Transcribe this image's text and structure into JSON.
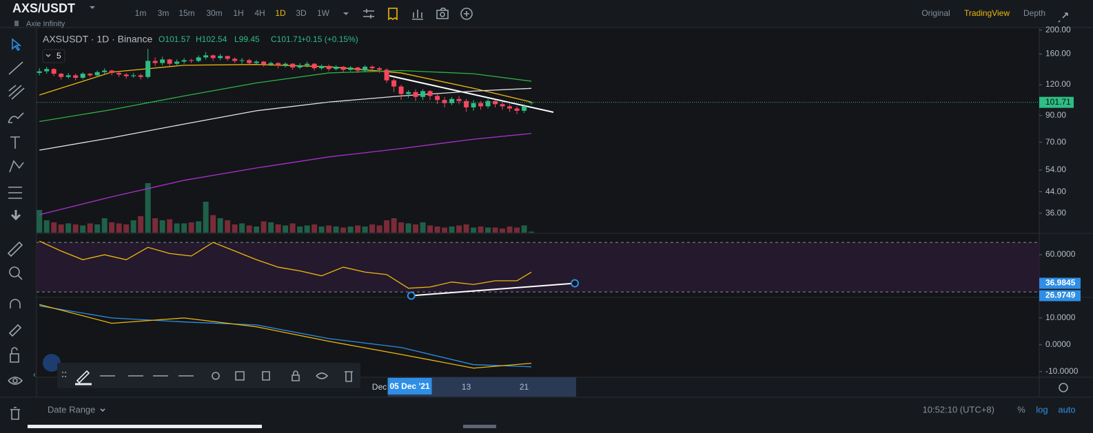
{
  "header": {
    "symbol": "AXS/USDT",
    "name": "Axie Infinity",
    "intervals": [
      {
        "label": "1m"
      },
      {
        "label": "3m"
      },
      {
        "label": "15m"
      },
      {
        "label": "30m"
      },
      {
        "label": "1H"
      },
      {
        "label": "4H"
      },
      {
        "label": "1D",
        "active": true
      },
      {
        "label": "3D"
      },
      {
        "label": "1W"
      }
    ],
    "views": [
      {
        "label": "Original"
      },
      {
        "label": "TradingView",
        "active": true
      },
      {
        "label": "Depth"
      }
    ]
  },
  "footer": {
    "date_range": "Date Range",
    "clock": "10:52:10 (UTC+8)",
    "options": [
      "%",
      "log",
      "auto"
    ]
  },
  "chart_data": [
    {
      "type": "candlestick",
      "title": "AXSUSDT · 1D · Binance",
      "legend": [
        "O101.57",
        "H102.54",
        "L99.45",
        "C101.71",
        "+0.15 (+0.15%)"
      ],
      "indicator_count": "5",
      "open": [
        134,
        136,
        139,
        133,
        129,
        131,
        128,
        133,
        131,
        135,
        137,
        134,
        132,
        130,
        131,
        129,
        150,
        147,
        152,
        146,
        149,
        151,
        150,
        155,
        158,
        154,
        157,
        153,
        150,
        151,
        147,
        149,
        145,
        147,
        144,
        146,
        141,
        144,
        146,
        140,
        143,
        139,
        142,
        138,
        141,
        137,
        142,
        140,
        138,
        125,
        118,
        110,
        112,
        107,
        113,
        108,
        104,
        101,
        105,
        103,
        97,
        101,
        98,
        103,
        100,
        98,
        96,
        94,
        101.57
      ],
      "high": [
        140,
        142,
        140,
        134,
        134,
        133,
        135,
        134,
        137,
        140,
        138,
        136,
        134,
        134,
        133,
        168,
        155,
        156,
        153,
        152,
        154,
        153,
        158,
        163,
        159,
        160,
        157,
        155,
        154,
        153,
        151,
        150,
        149,
        148,
        148,
        147,
        147,
        149,
        147,
        145,
        145,
        144,
        143,
        143,
        142,
        144,
        144,
        142,
        140,
        127,
        120,
        114,
        115,
        115,
        114,
        110,
        107,
        107,
        108,
        105,
        104,
        103,
        105,
        104,
        102,
        100,
        98,
        100,
        102.54
      ],
      "low": [
        131,
        133,
        130,
        126,
        127,
        125,
        126,
        129,
        129,
        133,
        131,
        129,
        127,
        128,
        126,
        127,
        143,
        144,
        143,
        144,
        146,
        147,
        148,
        152,
        150,
        151,
        150,
        147,
        146,
        144,
        145,
        142,
        143,
        140,
        141,
        138,
        139,
        141,
        137,
        138,
        136,
        137,
        135,
        136,
        134,
        135,
        136,
        134,
        122,
        112,
        104,
        106,
        103,
        104,
        104,
        100,
        97,
        99,
        100,
        93,
        94,
        95,
        96,
        97,
        95,
        93,
        91,
        92,
        99.45
      ],
      "close": [
        136,
        139,
        133,
        129,
        131,
        128,
        133,
        131,
        135,
        137,
        134,
        132,
        130,
        131,
        129,
        150,
        147,
        152,
        146,
        149,
        151,
        150,
        155,
        158,
        154,
        157,
        153,
        150,
        151,
        147,
        149,
        145,
        147,
        144,
        146,
        141,
        144,
        146,
        140,
        143,
        139,
        142,
        138,
        141,
        137,
        142,
        140,
        138,
        125,
        118,
        110,
        112,
        107,
        113,
        108,
        104,
        101,
        105,
        103,
        97,
        101,
        98,
        103,
        100,
        98,
        96,
        94,
        98,
        101.71
      ],
      "volume": [
        22,
        12,
        10,
        8,
        9,
        8,
        7,
        9,
        8,
        14,
        10,
        9,
        8,
        12,
        16,
        48,
        14,
        12,
        13,
        9,
        9,
        10,
        11,
        30,
        17,
        14,
        12,
        8,
        9,
        7,
        6,
        11,
        10,
        8,
        7,
        9,
        6,
        7,
        8,
        6,
        7,
        6,
        5,
        6,
        7,
        6,
        8,
        7,
        12,
        14,
        10,
        9,
        8,
        10,
        7,
        6,
        5,
        6,
        7,
        8,
        5,
        6,
        5,
        5,
        4,
        6,
        5,
        7,
        1
      ],
      "up_color": "#2ebd85",
      "down_color": "#f6465d",
      "series": [
        {
          "color": "#f0b90b",
          "x": [
            1,
            11,
            21,
            31,
            41,
            51,
            61,
            69
          ],
          "values": [
            109,
            135,
            144,
            145,
            142,
            134,
            116,
            102
          ]
        },
        {
          "color": "#2fb344",
          "x": [
            1,
            11,
            21,
            31,
            41,
            51,
            61,
            69
          ],
          "values": [
            85,
            95,
            108,
            122,
            134,
            137,
            133,
            124
          ]
        },
        {
          "color": "#e6e6e6",
          "x": [
            1,
            11,
            21,
            31,
            41,
            51,
            61,
            69
          ],
          "values": [
            65,
            73,
            83,
            94,
            102,
            108,
            113,
            116
          ]
        },
        {
          "color": "#b02fd0",
          "x": [
            1,
            11,
            21,
            31,
            41,
            51,
            61,
            69
          ],
          "values": [
            35.5,
            42,
            49,
            55,
            61,
            66,
            72,
            76
          ]
        }
      ],
      "log": true,
      "ylim": [
        30,
        205
      ],
      "yticks": [
        {
          "value": 200,
          "label": "200.00"
        },
        {
          "value": 160,
          "label": "160.00"
        },
        {
          "value": 120,
          "label": "120.00"
        },
        {
          "value": 90,
          "label": "90.00"
        },
        {
          "value": 70,
          "label": "70.00"
        },
        {
          "value": 54,
          "label": "54.00"
        },
        {
          "value": 44,
          "label": "44.00"
        },
        {
          "value": 36,
          "label": "36.00"
        }
      ],
      "xlim": [
        0.6,
        139.2
      ],
      "xticks": [
        {
          "value": 48,
          "label": "Dec"
        },
        {
          "value": 60,
          "label": "13"
        },
        {
          "value": 68,
          "label": "21"
        }
      ],
      "crosshair": {
        "value": 52,
        "label": "05 Dec '21"
      },
      "last_price": {
        "value": 101.71,
        "label": "101.71"
      }
    },
    {
      "type": "line",
      "color": "#f0b90b",
      "x": [
        1,
        4,
        7,
        10,
        13,
        16,
        19,
        22,
        25,
        28,
        31,
        34,
        37,
        40,
        43,
        46,
        49,
        52,
        55,
        58,
        61,
        64,
        67,
        69
      ],
      "values": [
        71,
        63,
        56,
        60,
        56,
        66,
        61,
        59,
        70,
        63,
        56,
        50,
        47,
        43,
        50,
        46,
        44,
        33,
        34,
        38,
        36,
        39,
        39,
        46
      ],
      "ylim": [
        25.6,
        76.7
      ],
      "xlim": [
        0.6,
        139.2
      ],
      "band": [
        30,
        70
      ],
      "yticks": [
        {
          "value": 60,
          "label": "60.0000"
        }
      ],
      "annotations": [
        {
          "x": 75,
          "value": 36.9845,
          "label": "36.9845"
        },
        {
          "x": 52.4,
          "value": 26.9749,
          "label": "26.9749"
        }
      ]
    },
    {
      "type": "line",
      "series": [
        {
          "color": "#2f8ee5",
          "x": [
            1,
            11,
            21,
            31,
            41,
            51,
            61,
            69
          ],
          "values": [
            14.5,
            10,
            8.5,
            7.4,
            2.3,
            -1,
            -7.4,
            -8.2
          ]
        },
        {
          "color": "#f0b90b",
          "x": [
            1,
            11,
            21,
            31,
            41,
            51,
            61,
            69
          ],
          "values": [
            15,
            8,
            10,
            6.7,
            1.3,
            -3.6,
            -8.7,
            -6.9
          ]
        }
      ],
      "ylim": [
        -12.1,
        17.4
      ],
      "xlim": [
        0.6,
        139.2
      ],
      "yticks": [
        {
          "value": 10,
          "label": "10.0000"
        },
        {
          "value": 0,
          "label": "0.0000"
        },
        {
          "value": -10,
          "label": "-10.0000"
        }
      ]
    }
  ]
}
